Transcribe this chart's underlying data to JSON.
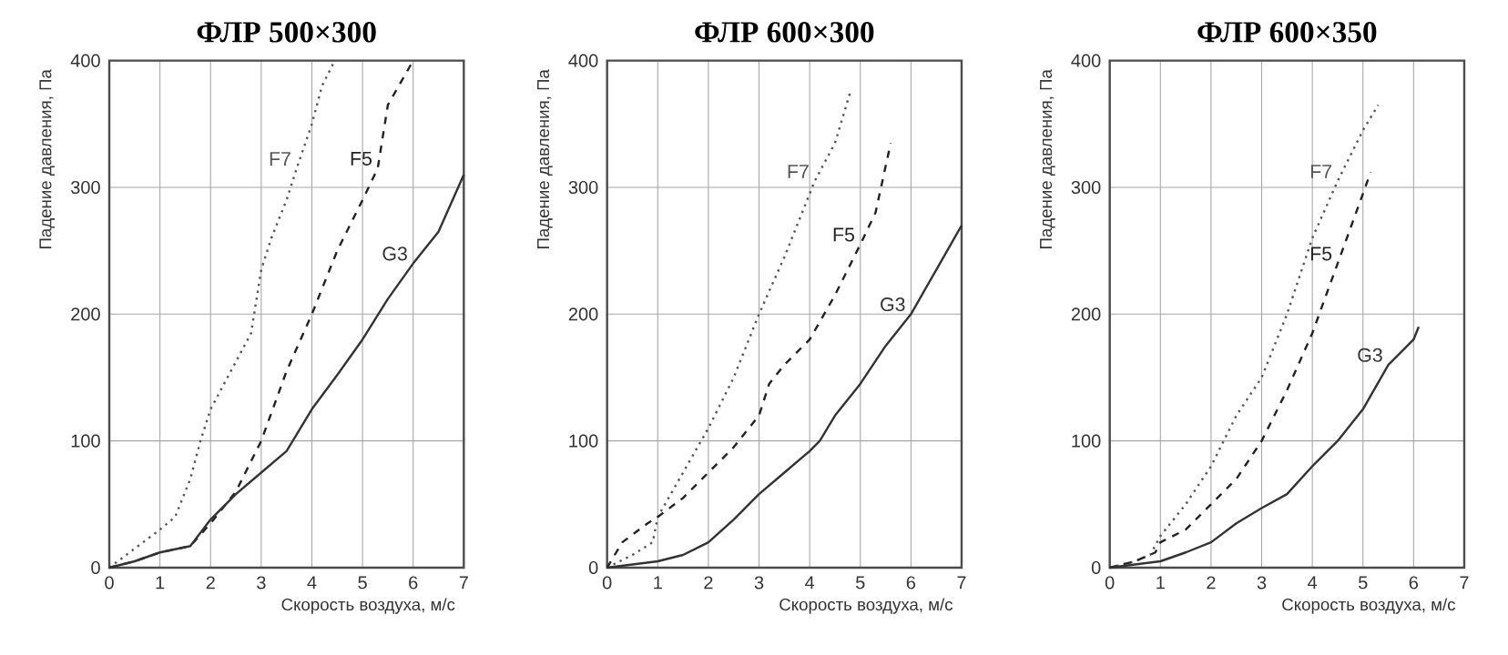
{
  "chart_data": [
    {
      "type": "line",
      "title": "ФЛР 500×300",
      "xlabel": "Скорость воздуха, м/с",
      "ylabel": "Падение давления, Па",
      "xlim": [
        0,
        7
      ],
      "ylim": [
        0,
        400
      ],
      "xticks": [
        0,
        1,
        2,
        3,
        4,
        5,
        6,
        7
      ],
      "yticks": [
        0,
        100,
        200,
        300,
        400
      ],
      "grid": true,
      "legend": false,
      "series": [
        {
          "name": "F7",
          "color": "#555555",
          "line_style": "dotted",
          "x": [
            0,
            0.5,
            1,
            1.3,
            1.6,
            1.8,
            2,
            2.4,
            2.8,
            3,
            3.2,
            3.5,
            3.7,
            4,
            4.2,
            4.45
          ],
          "values": [
            0,
            15,
            30,
            40,
            70,
            100,
            125,
            155,
            185,
            235,
            260,
            290,
            315,
            350,
            380,
            400
          ]
        },
        {
          "name": "F5",
          "color": "#222222",
          "line_style": "dashed",
          "x": [
            0,
            0.5,
            1,
            1.6,
            2,
            2.5,
            3,
            3.5,
            4,
            4.5,
            5,
            5.3,
            5.5,
            6
          ],
          "values": [
            0,
            5,
            12,
            17,
            35,
            60,
            100,
            155,
            200,
            250,
            290,
            315,
            365,
            400
          ]
        },
        {
          "name": "G3",
          "color": "#333333",
          "line_style": "solid",
          "x": [
            0,
            0.5,
            1,
            1.6,
            2,
            2.5,
            3,
            3.5,
            4,
            4.5,
            5,
            5.5,
            6,
            6.5,
            7
          ],
          "values": [
            0,
            5,
            12,
            17,
            38,
            58,
            75,
            92,
            125,
            152,
            180,
            212,
            240,
            265,
            310
          ]
        }
      ]
    },
    {
      "type": "line",
      "title": "ФЛР 600×300",
      "xlabel": "Скорость воздуха, м/с",
      "ylabel": "Падение давления, Па",
      "xlim": [
        0,
        7
      ],
      "ylim": [
        0,
        400
      ],
      "xticks": [
        0,
        1,
        2,
        3,
        4,
        5,
        6,
        7
      ],
      "yticks": [
        0,
        100,
        200,
        300,
        400
      ],
      "grid": true,
      "legend": false,
      "series": [
        {
          "name": "F7",
          "color": "#555555",
          "line_style": "dotted",
          "x": [
            0,
            0.5,
            0.9,
            1,
            1.5,
            2,
            2.5,
            3,
            3.5,
            4,
            4.1,
            4.5,
            4.8
          ],
          "values": [
            0,
            10,
            20,
            40,
            75,
            110,
            150,
            200,
            245,
            295,
            305,
            335,
            375
          ]
        },
        {
          "name": "F5",
          "color": "#222222",
          "line_style": "dashed",
          "x": [
            0,
            0.3,
            0.8,
            1,
            1.5,
            2,
            2.5,
            3,
            3.2,
            3.5,
            4,
            4.5,
            5,
            5.3,
            5.6
          ],
          "values": [
            0,
            20,
            35,
            40,
            55,
            75,
            95,
            120,
            145,
            160,
            180,
            215,
            255,
            280,
            335
          ]
        },
        {
          "name": "G3",
          "color": "#333333",
          "line_style": "solid",
          "x": [
            0,
            1,
            1.5,
            2,
            2.5,
            3,
            3.5,
            4,
            4.2,
            4.5,
            5,
            5.5,
            6,
            6.5,
            7
          ],
          "values": [
            0,
            5,
            10,
            20,
            38,
            58,
            75,
            92,
            100,
            120,
            145,
            175,
            200,
            235,
            270
          ]
        }
      ]
    },
    {
      "type": "line",
      "title": "ФЛР 600×350",
      "xlabel": "Скорость воздуха, м/с",
      "ylabel": "Падение давления, Па",
      "xlim": [
        0,
        7
      ],
      "ylim": [
        0,
        400
      ],
      "xticks": [
        0,
        1,
        2,
        3,
        4,
        5,
        6,
        7
      ],
      "yticks": [
        0,
        100,
        200,
        300,
        400
      ],
      "grid": true,
      "legend": false,
      "series": [
        {
          "name": "F7",
          "color": "#555555",
          "line_style": "dotted",
          "x": [
            0,
            0.5,
            0.8,
            1,
            1.5,
            2,
            2.5,
            3,
            3.5,
            4,
            4.5,
            5,
            5.3
          ],
          "values": [
            0,
            5,
            10,
            25,
            50,
            80,
            120,
            150,
            200,
            260,
            305,
            345,
            365
          ]
        },
        {
          "name": "F5",
          "color": "#222222",
          "line_style": "dashed",
          "x": [
            0,
            0.5,
            0.9,
            1,
            1.5,
            2,
            2.5,
            3,
            3.5,
            4,
            4.5,
            5,
            5.15
          ],
          "values": [
            0,
            5,
            12,
            20,
            30,
            50,
            70,
            100,
            140,
            185,
            240,
            295,
            312
          ]
        },
        {
          "name": "G3",
          "color": "#333333",
          "line_style": "solid",
          "x": [
            0,
            1,
            1.5,
            2,
            2.5,
            3,
            3.5,
            4,
            4.5,
            5,
            5.5,
            6,
            6.1
          ],
          "values": [
            0,
            5,
            12,
            20,
            35,
            47,
            58,
            80,
            100,
            125,
            160,
            180,
            190
          ]
        }
      ]
    }
  ]
}
